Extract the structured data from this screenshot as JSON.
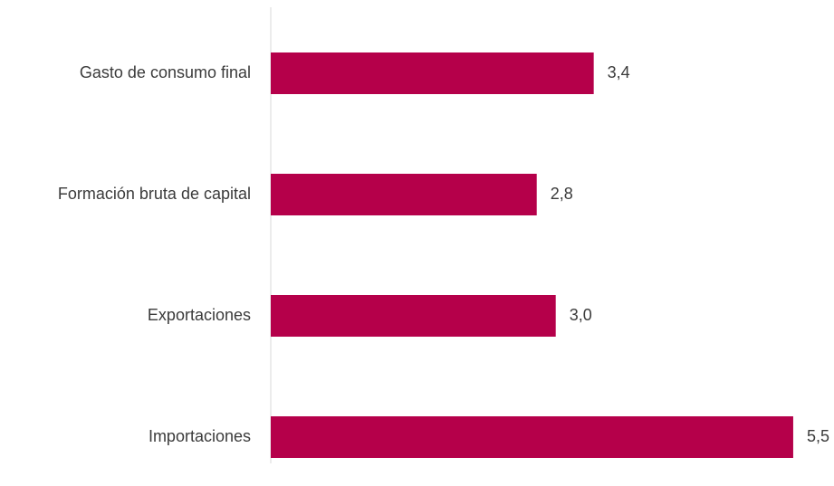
{
  "chart_data": {
    "type": "bar",
    "orientation": "horizontal",
    "categories": [
      "Gasto de consumo final",
      "Formación bruta de capital",
      "Exportaciones",
      "Importaciones"
    ],
    "values": [
      3.4,
      2.8,
      3.0,
      5.5
    ],
    "value_labels": [
      "3,4",
      "2,8",
      "3,0",
      "5,5"
    ],
    "title": "",
    "xlabel": "",
    "ylabel": "",
    "xlim": [
      0,
      5.5
    ],
    "grid": false,
    "legend": "none",
    "bar_color": "#b5004a"
  }
}
